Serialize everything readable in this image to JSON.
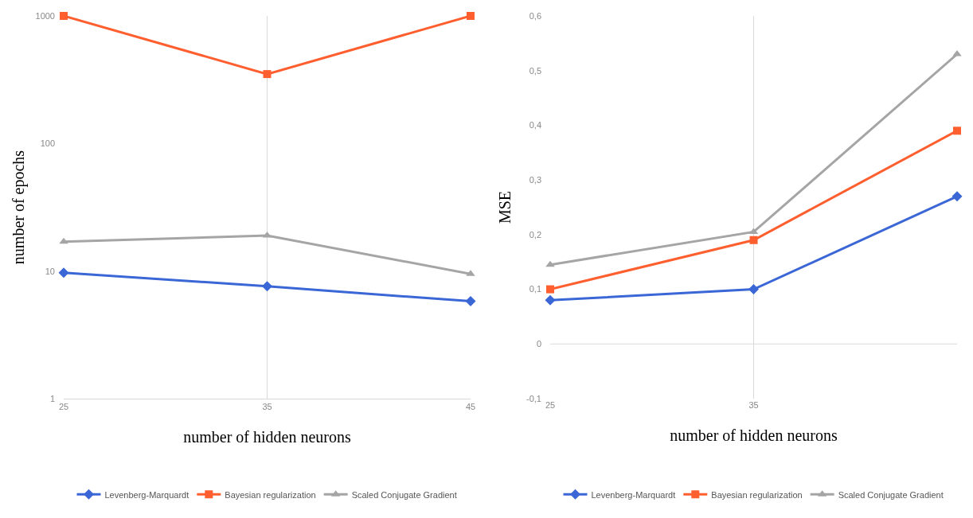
{
  "chart_data": [
    {
      "type": "line",
      "xlabel": "number of hidden neurons",
      "ylabel": "number of epochs",
      "x": [
        25,
        35,
        45
      ],
      "xlim": [
        25,
        45
      ],
      "xticks": [
        25,
        35,
        45
      ],
      "log": "y",
      "ylim": [
        1,
        1000
      ],
      "yticks": [
        1,
        10,
        100,
        1000
      ],
      "grid": "x",
      "legend": "bottom",
      "series": [
        {
          "name": "Levenberg-Marquardt",
          "color": "#3a66d6",
          "marker": "diamond",
          "values": [
            9.7,
            7.6,
            5.8
          ]
        },
        {
          "name": "Bayesian regularization",
          "color": "#ff5e2e",
          "marker": "square",
          "values": [
            1000,
            350,
            1000
          ]
        },
        {
          "name": "Scaled Conjugate Gradient",
          "color": "#a5a5a5",
          "marker": "triangle",
          "values": [
            17,
            19,
            9.5
          ]
        }
      ]
    },
    {
      "type": "line",
      "xlabel": "number of hidden neurons",
      "ylabel": "MSE",
      "x": [
        25,
        35,
        45
      ],
      "xlim": [
        25,
        45
      ],
      "xticks": [
        25,
        35
      ],
      "ylim": [
        -0.1,
        0.6
      ],
      "yticks": [
        {
          "value": -0.1,
          "label": "-0,1"
        },
        0,
        {
          "value": 0.1,
          "label": "0,1"
        },
        {
          "value": 0.2,
          "label": "0,2"
        },
        {
          "value": 0.3,
          "label": "0,3"
        },
        {
          "value": 0.4,
          "label": "0,4"
        },
        {
          "value": 0.5,
          "label": "0,5"
        },
        {
          "value": 0.6,
          "label": "0,6"
        }
      ],
      "grid": "x",
      "legend": "bottom",
      "ref_lines": [
        {
          "axis": "y",
          "value": 0,
          "color": "#d9d9d9"
        }
      ],
      "series": [
        {
          "name": "Levenberg-Marquardt",
          "color": "#3a66d6",
          "marker": "diamond",
          "values": [
            0.08,
            0.1,
            0.27
          ]
        },
        {
          "name": "Bayesian regularization",
          "color": "#ff5e2e",
          "marker": "square",
          "values": [
            0.1,
            0.19,
            0.39
          ]
        },
        {
          "name": "Scaled Conjugate Gradient",
          "color": "#a5a5a5",
          "marker": "triangle",
          "values": [
            0.145,
            0.205,
            0.53
          ]
        }
      ]
    }
  ]
}
